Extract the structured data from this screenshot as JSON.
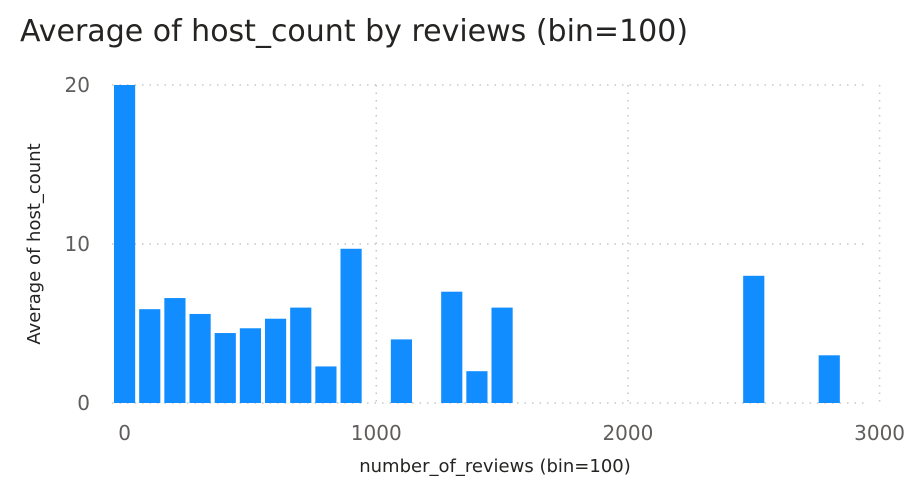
{
  "chart_data": {
    "type": "bar",
    "title": "Average of host_count by reviews (bin=100)",
    "xlabel": "number_of_reviews (bin=100)",
    "ylabel": "Average of host_count",
    "xlim": [
      0,
      3000
    ],
    "ylim": [
      0,
      20
    ],
    "x_ticks": [
      "0",
      "1000",
      "2000",
      "3000"
    ],
    "y_ticks": [
      "0",
      "10",
      "20"
    ],
    "bin_width": 100,
    "grid": true,
    "bar_color": "#118DFF",
    "x": [
      0,
      100,
      200,
      300,
      400,
      500,
      600,
      700,
      800,
      900,
      1100,
      1300,
      1400,
      1500,
      2500,
      2800
    ],
    "values": [
      20,
      5.9,
      6.6,
      5.6,
      4.4,
      4.7,
      5.3,
      6.0,
      2.3,
      9.7,
      4.0,
      7.0,
      2.0,
      6.0,
      8.0,
      3.0
    ]
  }
}
